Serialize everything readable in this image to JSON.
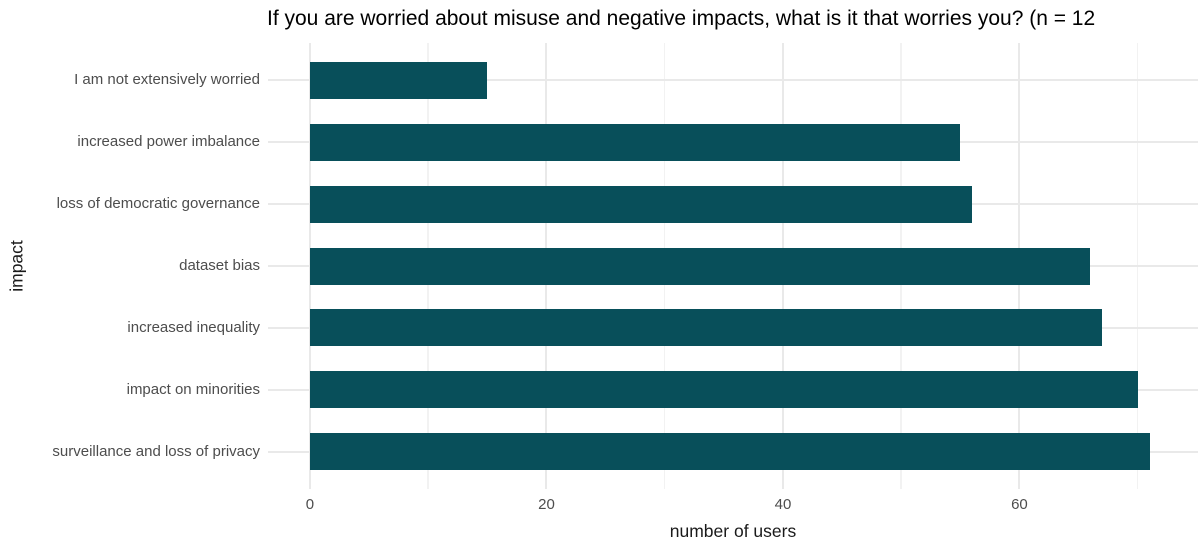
{
  "title": "If you are worried about misuse and negative impacts, what is it that worries you? (n = 12",
  "chart_data": {
    "type": "bar",
    "orientation": "horizontal",
    "title": "If you are worried about misuse and negative impacts, what is it that worries you? (n = 12",
    "categories": [
      "I am not extensively worried",
      "increased power imbalance",
      "loss of democratic governance",
      "dataset bias",
      "increased inequality",
      "impact on minorities",
      "surveillance and loss of privacy"
    ],
    "values": [
      15,
      55,
      56,
      66,
      67,
      70,
      71
    ],
    "xlabel": "number of users",
    "ylabel": "impact",
    "x_major_ticks": [
      0,
      20,
      40,
      60
    ],
    "x_minor_ticks": [
      10,
      30,
      50,
      70
    ],
    "xlim": [
      -3.55,
      75.1
    ],
    "grid": "on",
    "legend": "none",
    "colors": {
      "bar": "#084f5a",
      "grid_major": "#e9e9e9",
      "grid_minor": "#f2f2f2",
      "tick_text": "#4d4d4d",
      "axis_title_text": "#1a1a1a",
      "title_text": "#000000",
      "background": "#ffffff"
    }
  }
}
